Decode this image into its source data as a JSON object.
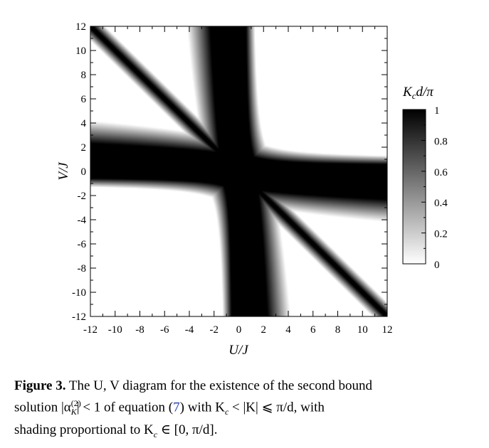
{
  "chart_data": {
    "type": "heatmap",
    "xlabel": "U/J",
    "ylabel": "V/J",
    "xlim": [
      -12,
      12
    ],
    "ylim": [
      -12,
      12
    ],
    "x_ticks": [
      "-12",
      "-10",
      "-8",
      "-6",
      "-4",
      "-2",
      "0",
      "2",
      "4",
      "6",
      "8",
      "10",
      "12"
    ],
    "y_ticks": [
      "-12",
      "-10",
      "-8",
      "-6",
      "-4",
      "-2",
      "0",
      "2",
      "4",
      "6",
      "8",
      "10",
      "12"
    ],
    "colorbar": {
      "title": "K_c d/π",
      "range": [
        0,
        1
      ],
      "ticks": [
        "0",
        "0.2",
        "0.4",
        "0.6",
        "0.8",
        "1"
      ],
      "colormap": [
        "#ffffff",
        "#000000"
      ]
    },
    "regions": [
      {
        "description": "vertical dark band centered at U/J = 0, widening with |V/J|; value 1 at U/J = 0"
      },
      {
        "description": "horizontal dark band centered at V/J = 0, widening with |U/J|; value 1 at V/J = 0"
      },
      {
        "description": "white (0) regions where U·V > 0 beyond the hyperbola-shaped band edges"
      }
    ],
    "grid": false
  },
  "caption": {
    "label": "Figure 3.",
    "line1": "The U, V diagram for the existence of the second bound",
    "line2_before": "solution |α",
    "line2_sup": "(2)",
    "line2_sub": "K",
    "line2_after": "| < 1 of equation (",
    "line2_ref": "7",
    "line2_end": ") with K",
    "line2_sub2": "c",
    "line2_tail": " < |K| ⩽ π/d, with",
    "line3": "shading proportional to K",
    "line3_sub": "c",
    "line3_tail": " ∈ [0, π/d]."
  }
}
